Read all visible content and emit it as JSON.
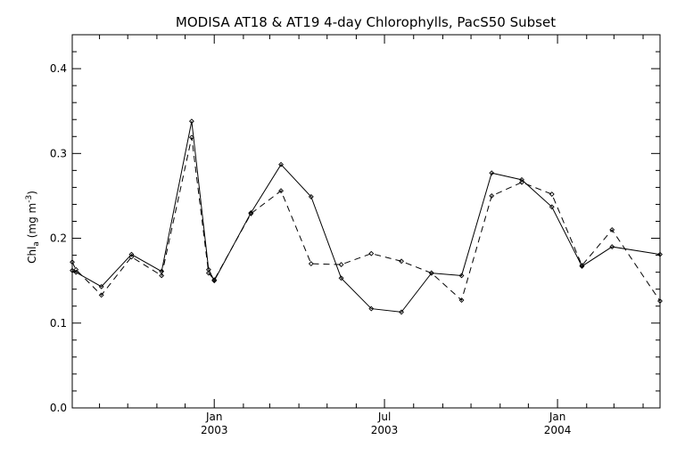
{
  "chart_data": {
    "type": "line",
    "title": "MODISA AT18 & AT19 4-day Chlorophylls, PacS50 Subset",
    "ylabel": {
      "main": "Chl",
      "sub": "a",
      "unit_open": " (mg m",
      "sup": "-3",
      "unit_close": ")"
    },
    "xlabel": "",
    "ylim": [
      0.0,
      0.44
    ],
    "xlim": [
      "2002-08-03",
      "2004-04-19"
    ],
    "yticks": [
      {
        "value": 0.0,
        "label": "0.0"
      },
      {
        "value": 0.1,
        "label": "0.1"
      },
      {
        "value": 0.2,
        "label": "0.2"
      },
      {
        "value": 0.3,
        "label": "0.3"
      },
      {
        "value": 0.4,
        "label": "0.4"
      }
    ],
    "xticks": [
      {
        "date": "2003-01-01",
        "line1": "Jan",
        "line2": "2003"
      },
      {
        "date": "2003-07-01",
        "line1": "Jul",
        "line2": "2003"
      },
      {
        "date": "2004-01-01",
        "line1": "Jan",
        "line2": "2004"
      }
    ],
    "x_minor_ticks": [
      "2002-09-01",
      "2002-10-01",
      "2002-11-01",
      "2002-12-01",
      "2003-02-01",
      "2003-03-01",
      "2003-04-01",
      "2003-05-01",
      "2003-06-01",
      "2003-08-01",
      "2003-09-01",
      "2003-10-01",
      "2003-11-01",
      "2003-12-01",
      "2004-02-01",
      "2004-03-01",
      "2004-04-01"
    ],
    "grid": false,
    "series": [
      {
        "style": "solid",
        "points": [
          [
            "2002-08-03",
            0.162
          ],
          [
            "2002-08-07",
            0.16
          ],
          [
            "2002-09-03",
            0.143
          ],
          [
            "2002-10-05",
            0.181
          ],
          [
            "2002-11-06",
            0.161
          ],
          [
            "2002-12-08",
            0.338
          ],
          [
            "2002-12-26",
            0.163
          ],
          [
            "2003-01-01",
            0.15
          ],
          [
            "2003-02-09",
            0.23
          ],
          [
            "2003-03-13",
            0.287
          ],
          [
            "2003-04-14",
            0.249
          ],
          [
            "2003-05-16",
            0.153
          ],
          [
            "2003-06-17",
            0.117
          ],
          [
            "2003-07-19",
            0.113
          ],
          [
            "2003-08-20",
            0.159
          ],
          [
            "2003-09-21",
            0.156
          ],
          [
            "2003-10-23",
            0.277
          ],
          [
            "2003-11-24",
            0.269
          ],
          [
            "2003-12-26",
            0.237
          ],
          [
            "2004-01-27",
            0.167
          ],
          [
            "2004-02-28",
            0.19
          ],
          [
            "2004-04-19",
            0.181
          ]
        ]
      },
      {
        "style": "dashed",
        "points": [
          [
            "2002-08-03",
            0.172
          ],
          [
            "2002-08-07",
            0.163
          ],
          [
            "2002-09-03",
            0.133
          ],
          [
            "2002-10-05",
            0.178
          ],
          [
            "2002-11-06",
            0.156
          ],
          [
            "2002-12-08",
            0.319
          ],
          [
            "2002-12-26",
            0.159
          ],
          [
            "2003-01-01",
            0.151
          ],
          [
            "2003-02-09",
            0.229
          ],
          [
            "2003-03-13",
            0.256
          ],
          [
            "2003-04-14",
            0.17
          ],
          [
            "2003-05-16",
            0.169
          ],
          [
            "2003-06-17",
            0.182
          ],
          [
            "2003-07-19",
            0.173
          ],
          [
            "2003-08-20",
            0.159
          ],
          [
            "2003-09-21",
            0.127
          ],
          [
            "2003-10-23",
            0.25
          ],
          [
            "2003-11-24",
            0.266
          ],
          [
            "2003-12-26",
            0.252
          ],
          [
            "2004-01-27",
            0.168
          ],
          [
            "2004-02-28",
            0.21
          ],
          [
            "2004-04-19",
            0.126
          ]
        ]
      }
    ]
  }
}
